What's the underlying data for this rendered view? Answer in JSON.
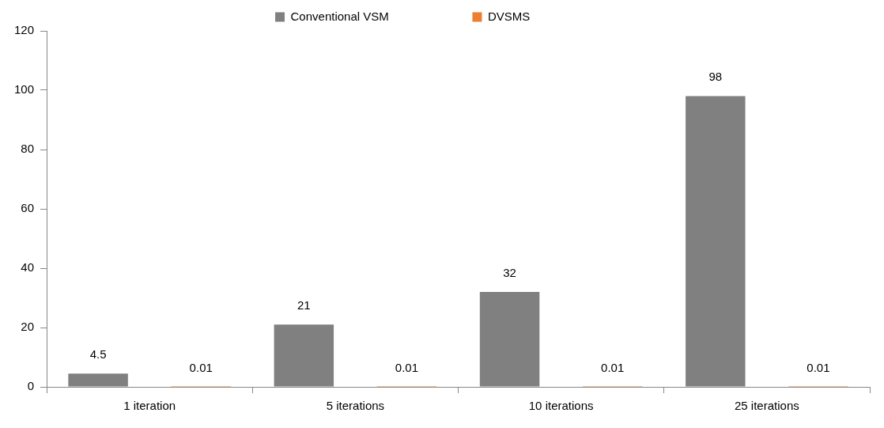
{
  "chart_data": {
    "type": "bar",
    "categories": [
      "1 iteration",
      "5 iterations",
      "10 iterations",
      "25 iterations"
    ],
    "series": [
      {
        "name": "Conventional VSM",
        "color": "#808080",
        "values": [
          4.5,
          21,
          32,
          98
        ]
      },
      {
        "name": "DVSMS",
        "color": "#ed7d31",
        "values": [
          0.01,
          0.01,
          0.01,
          0.01
        ]
      }
    ],
    "ylim": [
      0,
      120
    ],
    "yticks": [
      0,
      20,
      40,
      60,
      80,
      100,
      120
    ],
    "data_labels": true,
    "legend": "top"
  }
}
